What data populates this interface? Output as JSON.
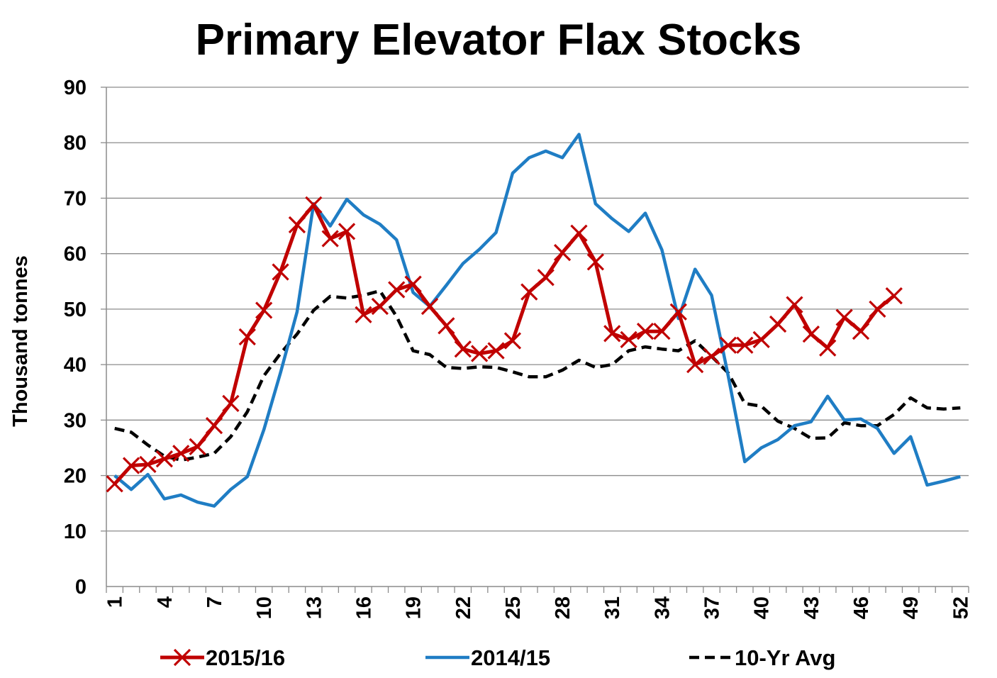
{
  "chart_data": {
    "type": "line",
    "title": "Primary Elevator Flax Stocks",
    "xlabel": "",
    "ylabel": "Thousand tonnes",
    "ylim": [
      0,
      90
    ],
    "yticks": [
      0,
      10,
      20,
      30,
      40,
      50,
      60,
      70,
      80,
      90
    ],
    "xlim": [
      1,
      52
    ],
    "xtick_labels": [
      "1",
      "4",
      "7",
      "10",
      "13",
      "16",
      "19",
      "22",
      "25",
      "28",
      "31",
      "34",
      "37",
      "40",
      "43",
      "46",
      "49",
      "52"
    ],
    "grid": "horizontal",
    "legend_position": "bottom",
    "colors": {
      "s2015": "#C00000",
      "s2014": "#1F7DC4",
      "avg": "#000000",
      "grid": "#8C8C8C",
      "axis": "#8C8C8C"
    },
    "series": [
      {
        "name": "2015/16",
        "style": "solid-cross",
        "x": [
          1,
          2,
          3,
          4,
          5,
          6,
          7,
          8,
          9,
          10,
          11,
          12,
          13,
          14,
          15,
          16,
          17,
          18,
          19,
          20,
          21,
          22,
          23,
          24,
          25,
          26,
          27,
          28,
          29,
          30,
          31,
          32,
          33,
          34,
          35,
          36,
          37,
          38,
          39,
          40,
          41,
          42,
          43,
          44,
          45,
          46,
          47,
          48
        ],
        "values": [
          18.5,
          21.8,
          22,
          23,
          24,
          25.2,
          29,
          33,
          45,
          49.8,
          56.7,
          65.2,
          68.8,
          62.7,
          64,
          49,
          50.5,
          53.5,
          54.5,
          50.5,
          47,
          42.8,
          42,
          42.5,
          44.3,
          53.1,
          55.7,
          60.2,
          63.7,
          58.5,
          45.6,
          44.5,
          46,
          46,
          49.5,
          40,
          41.5,
          43.5,
          43.5,
          44.5,
          47.3,
          50.8,
          45.5,
          43,
          48.5,
          46,
          50,
          52.4
        ]
      },
      {
        "name": "2014/15",
        "style": "solid",
        "x": [
          1,
          2,
          3,
          4,
          5,
          6,
          7,
          8,
          9,
          10,
          11,
          12,
          13,
          14,
          15,
          16,
          17,
          18,
          19,
          20,
          21,
          22,
          23,
          24,
          25,
          26,
          27,
          28,
          29,
          30,
          31,
          32,
          33,
          34,
          35,
          36,
          37,
          38,
          39,
          40,
          41,
          42,
          43,
          44,
          45,
          46,
          47,
          48,
          49,
          50,
          51,
          52
        ],
        "values": [
          20,
          17.5,
          20.2,
          15.8,
          16.5,
          15.2,
          14.5,
          17.5,
          19.8,
          28.3,
          38.5,
          49.5,
          69,
          65,
          69.8,
          67,
          65.3,
          62.5,
          53,
          50.5,
          54.3,
          58.2,
          60.8,
          63.8,
          74.5,
          77.3,
          78.5,
          77.3,
          81.5,
          69,
          66.3,
          64,
          67.3,
          60.7,
          48.3,
          57.2,
          52.5,
          38,
          22.5,
          25,
          26.5,
          29,
          29.7,
          34.3,
          30,
          30.2,
          28.5,
          24,
          27,
          18.3,
          19,
          19.8
        ]
      },
      {
        "name": "10-Yr Avg",
        "style": "dashed",
        "x": [
          1,
          2,
          3,
          4,
          5,
          6,
          7,
          8,
          9,
          10,
          11,
          12,
          13,
          14,
          15,
          16,
          17,
          18,
          19,
          20,
          21,
          22,
          23,
          24,
          25,
          26,
          27,
          28,
          29,
          30,
          31,
          32,
          33,
          34,
          35,
          36,
          37,
          38,
          39,
          40,
          41,
          42,
          43,
          44,
          45,
          46,
          47,
          48,
          49,
          50,
          51,
          52
        ],
        "values": [
          28.5,
          27.8,
          25.5,
          23.5,
          22.8,
          23.3,
          24,
          27,
          31.5,
          38,
          42,
          45.5,
          49.8,
          52.3,
          52,
          52.5,
          53.3,
          48.7,
          42.5,
          41.8,
          39.5,
          39.3,
          39.6,
          39.5,
          38.7,
          37.8,
          37.8,
          39,
          40.8,
          39.5,
          40,
          42.5,
          43.2,
          42.8,
          42.5,
          44.3,
          41.5,
          38.5,
          33,
          32.5,
          29.8,
          28.5,
          26.7,
          26.8,
          29.5,
          29,
          29,
          31,
          34,
          32.2,
          32,
          32.2
        ]
      }
    ]
  }
}
